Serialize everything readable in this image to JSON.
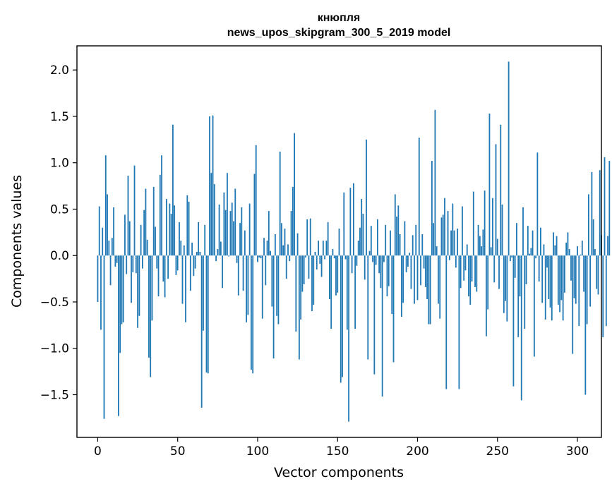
{
  "chart_data": {
    "type": "bar",
    "title": "кнюпля",
    "subtitle": "news_upos_skipgram_300_5_2019 model",
    "xlabel": "Vector components",
    "ylabel": "Components values",
    "xlim": [
      -13,
      315
    ],
    "ylim": [
      -1.96,
      2.26
    ],
    "xticks": [
      0,
      50,
      100,
      150,
      200,
      250,
      300
    ],
    "yticks": [
      -1.5,
      -1.0,
      -0.5,
      0.0,
      0.5,
      1.0,
      1.5,
      2.0
    ],
    "ytick_labels": [
      "−1.5",
      "−1.0",
      "−0.5",
      "0.0",
      "0.5",
      "1.0",
      "1.5",
      "2.0"
    ],
    "bar_color": "#1f77b4",
    "grid": false,
    "values": [
      -0.5,
      0.53,
      -0.8,
      0.3,
      -1.76,
      1.08,
      0.66,
      0.16,
      -0.32,
      0.19,
      0.52,
      -0.12,
      -0.08,
      -1.73,
      -1.05,
      -0.74,
      -0.72,
      0.44,
      -0.2,
      0.86,
      0.37,
      -0.51,
      -0.18,
      0.97,
      -0.19,
      -0.78,
      -0.65,
      0.33,
      -0.14,
      0.49,
      0.72,
      0.17,
      -1.1,
      -1.31,
      -0.7,
      0.74,
      0.31,
      -0.14,
      -0.44,
      0.87,
      1.08,
      -0.28,
      -0.45,
      0.61,
      -0.25,
      0.56,
      0.45,
      1.41,
      0.54,
      -0.21,
      -0.16,
      0.36,
      0.16,
      -0.52,
      0.11,
      -0.72,
      0.65,
      0.58,
      -0.38,
      0.14,
      -0.22,
      -0.14,
      0.04,
      0.36,
      0.04,
      -1.64,
      -0.81,
      0.33,
      -1.26,
      -1.27,
      1.5,
      0.89,
      1.51,
      0.77,
      -0.06,
      0.07,
      0.55,
      0.15,
      -0.35,
      0.68,
      0.49,
      0.89,
      -0.01,
      0.48,
      0.57,
      0.37,
      0.72,
      -0.08,
      -0.43,
      0.35,
      0.52,
      -0.38,
      0.27,
      -0.72,
      -0.64,
      0.56,
      -1.23,
      -1.27,
      0.88,
      1.19,
      -0.07,
      -0.02,
      -0.03,
      -0.68,
      0.19,
      -0.32,
      0.16,
      0.48,
      0.05,
      -0.55,
      -1.11,
      0.23,
      -0.65,
      -0.74,
      1.12,
      0.35,
      0.11,
      0.29,
      -0.25,
      0.12,
      -0.06,
      0.48,
      0.74,
      1.32,
      -0.82,
      0.24,
      -1.12,
      -0.69,
      -0.39,
      -0.31,
      -0.02,
      0.39,
      -0.25,
      0.4,
      -0.6,
      -0.53,
      0.04,
      -0.15,
      0.16,
      -0.09,
      -0.23,
      0.16,
      -0.04,
      0.16,
      0.36,
      -0.47,
      -0.79,
      0.07,
      -0.03,
      -0.43,
      -0.4,
      0.29,
      -1.37,
      -1.31,
      0.68,
      -0.04,
      -0.8,
      -1.79,
      0.73,
      -0.19,
      0.78,
      -0.79,
      -0.11,
      0.16,
      0.3,
      0.61,
      0.45,
      -0.26,
      1.25,
      -1.12,
      0.05,
      0.32,
      -0.07,
      -1.28,
      -0.1,
      0.39,
      -0.19,
      -0.35,
      -1.52,
      -0.07,
      0.33,
      -0.44,
      -0.33,
      0.27,
      -0.63,
      -1.15,
      0.66,
      0.42,
      0.54,
      0.23,
      -0.66,
      -0.51,
      0.37,
      -0.18,
      -0.12,
      0.03,
      -0.36,
      0.22,
      -0.52,
      0.33,
      -0.48,
      1.27,
      -0.32,
      0.23,
      -0.14,
      -0.34,
      -0.47,
      -0.74,
      -0.74,
      1.02,
      0.35,
      1.57,
      0.1,
      -0.52,
      -0.68,
      0.41,
      0.44,
      0.62,
      -1.44,
      0.48,
      -0.05,
      0.27,
      0.56,
      0.27,
      -0.13,
      0.29,
      -1.44,
      -0.35,
      0.53,
      -0.27,
      -0.16,
      0.12,
      -0.44,
      -0.53,
      -0.28,
      0.69,
      -0.34,
      -0.39,
      0.33,
      0.21,
      0.1,
      0.28,
      0.7,
      -0.87,
      -0.58,
      1.53,
      0.09,
      0.62,
      -0.29,
      1.2,
      0.18,
      -0.36,
      1.41,
      0.55,
      -0.62,
      -0.49,
      -0.71,
      2.09,
      -0.06,
      -0.02,
      -1.41,
      -0.24,
      0.35,
      -0.88,
      -0.44,
      -1.56,
      0.52,
      -0.79,
      -0.31,
      0.32,
      0.02,
      0.08,
      0.27,
      -1.09,
      -0.03,
      1.11,
      -0.28,
      0.3,
      -0.51,
      0.12,
      -0.69,
      -0.13,
      -0.47,
      -0.56,
      -0.7,
      0.25,
      0.11,
      0.21,
      -0.53,
      -0.61,
      -0.48,
      -0.7,
      -0.4,
      0.14,
      0.25,
      0.07,
      -0.27,
      -1.06,
      -0.46,
      -0.52,
      0.1,
      -0.76,
      0.01,
      0.16,
      -0.39,
      -1.5,
      -0.74,
      0.66,
      -0.55,
      0.9,
      0.39,
      0.07,
      -0.36,
      -0.42,
      0.92,
      0.22,
      -0.88,
      1.06,
      -0.76,
      0.21,
      1.02
    ]
  }
}
